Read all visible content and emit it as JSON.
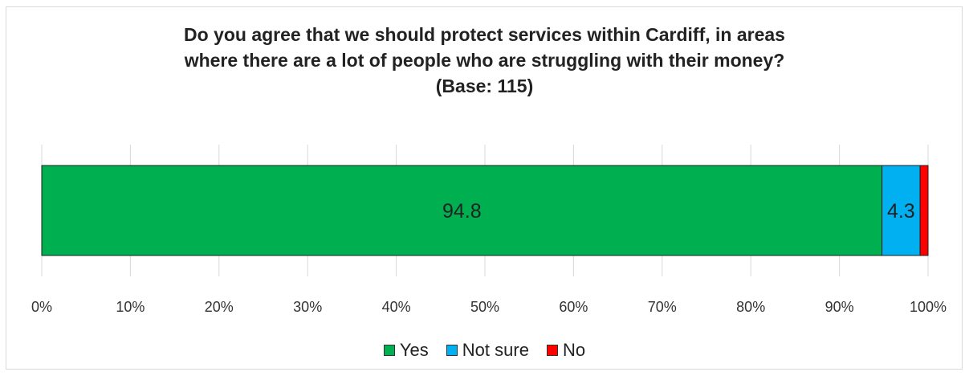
{
  "chart_data": {
    "type": "bar",
    "orientation": "horizontal",
    "stacked": true,
    "title": [
      "Do you agree that we should protect services within Cardiff, in areas",
      "where there are a lot of people who are struggling with their money?",
      "(Base: 115)"
    ],
    "categories": [
      ""
    ],
    "series": [
      {
        "name": "Yes",
        "values": [
          94.8
        ],
        "color": "#00b050",
        "label": "94.8"
      },
      {
        "name": "Not sure",
        "values": [
          4.3
        ],
        "color": "#00b0f0",
        "label": "4.3"
      },
      {
        "name": "No",
        "values": [
          0.9
        ],
        "color": "#ff0000",
        "label": ""
      }
    ],
    "xlim": [
      0,
      100
    ],
    "xticks": [
      "0%",
      "10%",
      "20%",
      "30%",
      "40%",
      "50%",
      "60%",
      "70%",
      "80%",
      "90%",
      "100%"
    ],
    "grid": true,
    "legend_position": "bottom"
  }
}
